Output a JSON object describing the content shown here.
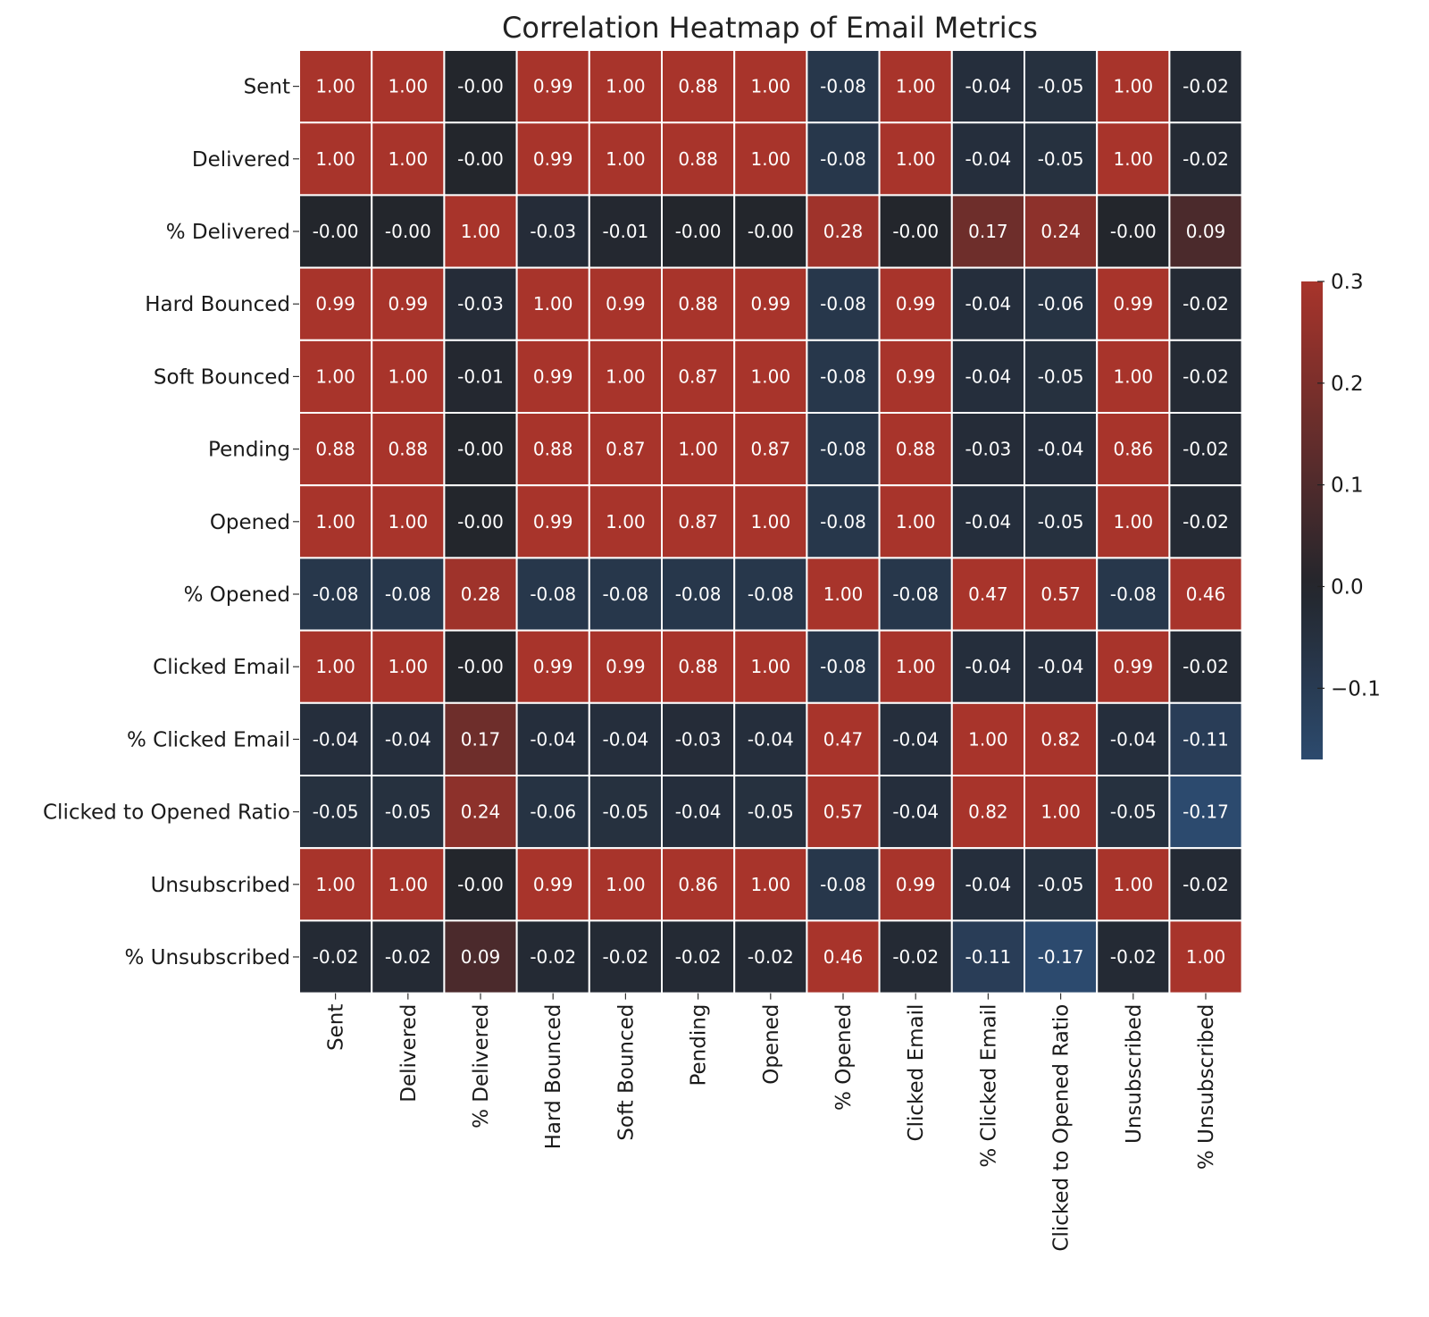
{
  "chart_data": {
    "type": "heatmap",
    "title": "Correlation Heatmap of Email Metrics",
    "xlabel": "",
    "ylabel": "",
    "labels": [
      "Sent",
      "Delivered",
      "% Delivered",
      "Hard Bounced",
      "Soft Bounced",
      "Pending",
      "Opened",
      "% Opened",
      "Clicked Email",
      "% Clicked Email",
      "Clicked to Opened Ratio",
      "Unsubscribed",
      "% Unsubscribed"
    ],
    "matrix": [
      [
        "1.00",
        "1.00",
        "-0.00",
        "0.99",
        "1.00",
        "0.88",
        "1.00",
        "-0.08",
        "1.00",
        "-0.04",
        "-0.05",
        "1.00",
        "-0.02"
      ],
      [
        "1.00",
        "1.00",
        "-0.00",
        "0.99",
        "1.00",
        "0.88",
        "1.00",
        "-0.08",
        "1.00",
        "-0.04",
        "-0.05",
        "1.00",
        "-0.02"
      ],
      [
        "-0.00",
        "-0.00",
        "1.00",
        "-0.03",
        "-0.01",
        "-0.00",
        "-0.00",
        "0.28",
        "-0.00",
        "0.17",
        "0.24",
        "-0.00",
        "0.09"
      ],
      [
        "0.99",
        "0.99",
        "-0.03",
        "1.00",
        "0.99",
        "0.88",
        "0.99",
        "-0.08",
        "0.99",
        "-0.04",
        "-0.06",
        "0.99",
        "-0.02"
      ],
      [
        "1.00",
        "1.00",
        "-0.01",
        "0.99",
        "1.00",
        "0.87",
        "1.00",
        "-0.08",
        "0.99",
        "-0.04",
        "-0.05",
        "1.00",
        "-0.02"
      ],
      [
        "0.88",
        "0.88",
        "-0.00",
        "0.88",
        "0.87",
        "1.00",
        "0.87",
        "-0.08",
        "0.88",
        "-0.03",
        "-0.04",
        "0.86",
        "-0.02"
      ],
      [
        "1.00",
        "1.00",
        "-0.00",
        "0.99",
        "1.00",
        "0.87",
        "1.00",
        "-0.08",
        "1.00",
        "-0.04",
        "-0.05",
        "1.00",
        "-0.02"
      ],
      [
        "-0.08",
        "-0.08",
        "0.28",
        "-0.08",
        "-0.08",
        "-0.08",
        "-0.08",
        "1.00",
        "-0.08",
        "0.47",
        "0.57",
        "-0.08",
        "0.46"
      ],
      [
        "1.00",
        "1.00",
        "-0.00",
        "0.99",
        "0.99",
        "0.88",
        "1.00",
        "-0.08",
        "1.00",
        "-0.04",
        "-0.04",
        "0.99",
        "-0.02"
      ],
      [
        "-0.04",
        "-0.04",
        "0.17",
        "-0.04",
        "-0.04",
        "-0.03",
        "-0.04",
        "0.47",
        "-0.04",
        "1.00",
        "0.82",
        "-0.04",
        "-0.11"
      ],
      [
        "-0.05",
        "-0.05",
        "0.24",
        "-0.06",
        "-0.05",
        "-0.04",
        "-0.05",
        "0.57",
        "-0.04",
        "0.82",
        "1.00",
        "-0.05",
        "-0.17"
      ],
      [
        "1.00",
        "1.00",
        "-0.00",
        "0.99",
        "1.00",
        "0.86",
        "1.00",
        "-0.08",
        "0.99",
        "-0.04",
        "-0.05",
        "1.00",
        "-0.02"
      ],
      [
        "-0.02",
        "-0.02",
        "0.09",
        "-0.02",
        "-0.02",
        "-0.02",
        "-0.02",
        "0.46",
        "-0.02",
        "-0.11",
        "-0.17",
        "-0.02",
        "1.00"
      ]
    ],
    "colorbar": {
      "vmin": -0.17,
      "vmax": 0.3,
      "center": 0.0,
      "ticks": [
        0.3,
        0.2,
        0.1,
        0.0,
        -0.1
      ],
      "tick_labels": [
        "0.3",
        "0.2",
        "0.1",
        "0.0",
        "−0.1"
      ],
      "placement": "right"
    },
    "colors": {
      "high": "#a8342b",
      "center": "#23262c",
      "low": "#2c4a6e",
      "cell_text": "#ffffff",
      "grid_lines": "#ffffff"
    },
    "annotated": true,
    "grid": false
  }
}
